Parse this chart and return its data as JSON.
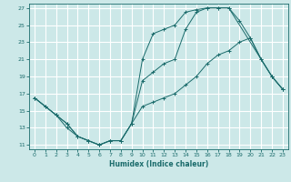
{
  "title": "",
  "xlabel": "Humidex (Indice chaleur)",
  "bg_color": "#cce8e8",
  "grid_color": "#ffffff",
  "line_color": "#1a6b6b",
  "xlim": [
    -0.5,
    23.5
  ],
  "ylim": [
    10.5,
    27.5
  ],
  "xticks": [
    0,
    1,
    2,
    3,
    4,
    5,
    6,
    7,
    8,
    9,
    10,
    11,
    12,
    13,
    14,
    15,
    16,
    17,
    18,
    19,
    20,
    21,
    22,
    23
  ],
  "yticks": [
    11,
    13,
    15,
    17,
    19,
    21,
    23,
    25,
    27
  ],
  "top_x": [
    0,
    2,
    3,
    4,
    5,
    6,
    7,
    8,
    9,
    10,
    11,
    12,
    13,
    14,
    15,
    16,
    17,
    18,
    22,
    23
  ],
  "top_y": [
    16.5,
    14.5,
    13.0,
    12.0,
    11.5,
    11.0,
    11.5,
    11.5,
    13.5,
    21.0,
    24.0,
    24.5,
    25.0,
    26.5,
    26.8,
    27.0,
    27.0,
    27.0,
    19.0,
    17.5
  ],
  "mid_x": [
    0,
    1,
    2,
    3,
    4,
    5,
    6,
    7,
    8,
    9,
    10,
    11,
    12,
    13,
    14,
    15,
    16,
    17,
    18,
    19,
    20,
    21,
    22,
    23
  ],
  "mid_y": [
    16.5,
    15.5,
    14.5,
    13.5,
    12.0,
    11.5,
    11.0,
    11.5,
    11.5,
    13.5,
    18.5,
    19.5,
    20.5,
    21.0,
    24.5,
    26.5,
    27.0,
    27.0,
    27.0,
    25.5,
    23.5,
    21.0,
    19.0,
    17.5
  ],
  "bot_x": [
    0,
    1,
    2,
    3,
    4,
    5,
    6,
    7,
    8,
    9,
    10,
    11,
    12,
    13,
    14,
    15,
    16,
    17,
    18,
    19,
    20,
    21,
    22,
    23
  ],
  "bot_y": [
    16.5,
    15.5,
    14.5,
    13.5,
    12.0,
    11.5,
    11.0,
    11.5,
    11.5,
    13.5,
    15.5,
    16.0,
    16.5,
    17.0,
    18.0,
    19.0,
    20.5,
    21.5,
    22.0,
    23.0,
    23.5,
    21.0,
    19.0,
    17.5
  ]
}
